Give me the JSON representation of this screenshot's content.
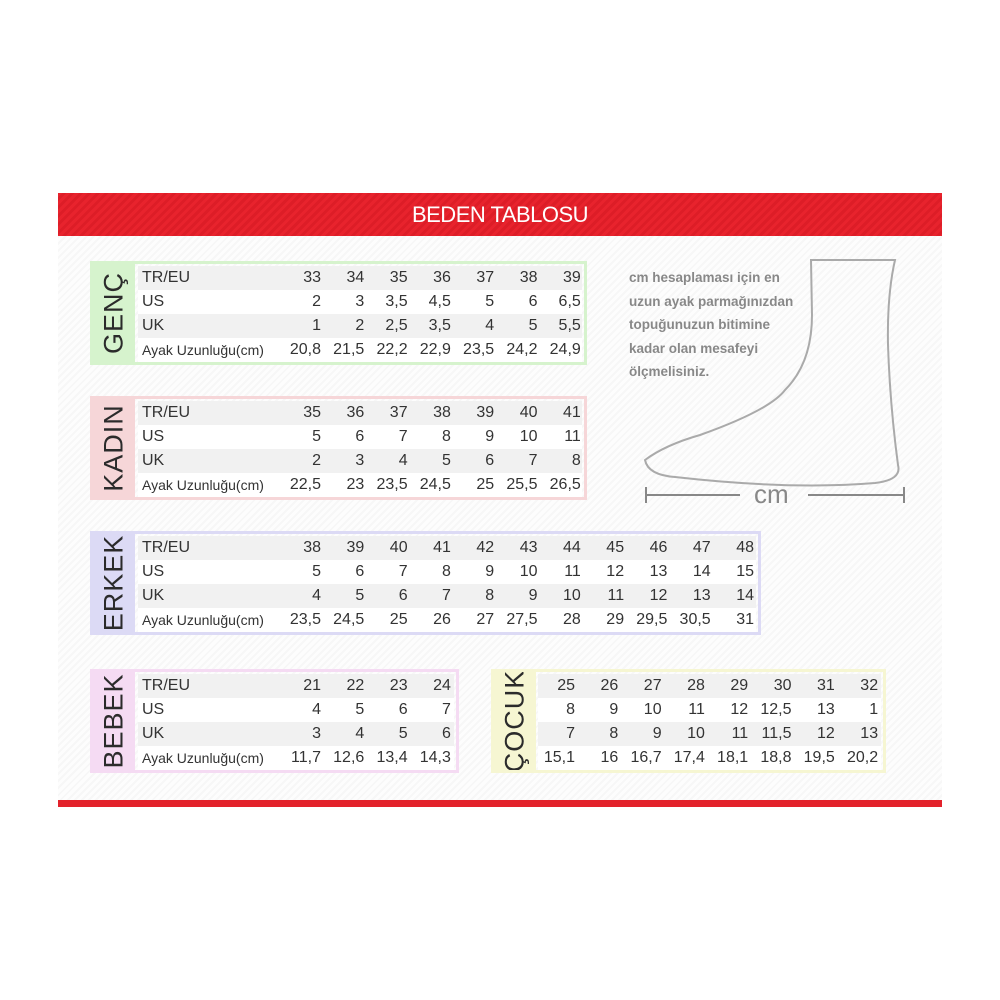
{
  "title": "BEDEN TABLOSU",
  "colors": {
    "header": "#e8232d",
    "genc": "#d6f3cd",
    "kadin": "#f6d6d8",
    "erkek": "#dcdaf5",
    "bebek": "#f5dbf3",
    "cocuk": "#f6f6d2"
  },
  "note": [
    "cm hesaplaması için en",
    "uzun ayak parmağınızdan",
    "topuğunuzun bitimine",
    "kadar olan mesafeyi",
    "ölçmelisiniz."
  ],
  "measure_label": "cm",
  "tables": [
    {
      "name": "GENÇ",
      "rows": [
        {
          "label": "TR/EU",
          "values": [
            "33",
            "34",
            "35",
            "36",
            "37",
            "38",
            "39"
          ]
        },
        {
          "label": "US",
          "values": [
            "2",
            "3",
            "3,5",
            "4,5",
            "5",
            "6",
            "6,5"
          ]
        },
        {
          "label": "UK",
          "values": [
            "1",
            "2",
            "2,5",
            "3,5",
            "4",
            "5",
            "5,5"
          ]
        },
        {
          "label": "Ayak Uzunluğu(cm)",
          "values": [
            "20,8",
            "21,5",
            "22,2",
            "22,9",
            "23,5",
            "24,2",
            "24,9"
          ]
        }
      ]
    },
    {
      "name": "KADIN",
      "rows": [
        {
          "label": "TR/EU",
          "values": [
            "35",
            "36",
            "37",
            "38",
            "39",
            "40",
            "41"
          ]
        },
        {
          "label": "US",
          "values": [
            "5",
            "6",
            "7",
            "8",
            "9",
            "10",
            "11"
          ]
        },
        {
          "label": "UK",
          "values": [
            "2",
            "3",
            "4",
            "5",
            "6",
            "7",
            "8"
          ]
        },
        {
          "label": "Ayak Uzunluğu(cm)",
          "values": [
            "22,5",
            "23",
            "23,5",
            "24,5",
            "25",
            "25,5",
            "26,5"
          ]
        }
      ]
    },
    {
      "name": "ERKEK",
      "rows": [
        {
          "label": "TR/EU",
          "values": [
            "38",
            "39",
            "40",
            "41",
            "42",
            "43",
            "44",
            "45",
            "46",
            "47",
            "48"
          ]
        },
        {
          "label": "US",
          "values": [
            "5",
            "6",
            "7",
            "8",
            "9",
            "10",
            "11",
            "12",
            "13",
            "14",
            "15"
          ]
        },
        {
          "label": "UK",
          "values": [
            "4",
            "5",
            "6",
            "7",
            "8",
            "9",
            "10",
            "11",
            "12",
            "13",
            "14"
          ]
        },
        {
          "label": "Ayak Uzunluğu(cm)",
          "values": [
            "23,5",
            "24,5",
            "25",
            "26",
            "27",
            "27,5",
            "28",
            "29",
            "29,5",
            "30,5",
            "31"
          ]
        }
      ]
    },
    {
      "name": "BEBEK",
      "rows": [
        {
          "label": "TR/EU",
          "values": [
            "21",
            "22",
            "23",
            "24"
          ]
        },
        {
          "label": "US",
          "values": [
            "4",
            "5",
            "6",
            "7"
          ]
        },
        {
          "label": "UK",
          "values": [
            "3",
            "4",
            "5",
            "6"
          ]
        },
        {
          "label": "Ayak Uzunluğu(cm)",
          "values": [
            "11,7",
            "12,6",
            "13,4",
            "14,3"
          ]
        }
      ]
    },
    {
      "name": "ÇOCUK",
      "rows": [
        {
          "label": "",
          "values": [
            "25",
            "26",
            "27",
            "28",
            "29",
            "30",
            "31",
            "32"
          ]
        },
        {
          "label": "",
          "values": [
            "8",
            "9",
            "10",
            "11",
            "12",
            "12,5",
            "13",
            "1"
          ]
        },
        {
          "label": "",
          "values": [
            "7",
            "8",
            "9",
            "10",
            "11",
            "11,5",
            "12",
            "13"
          ]
        },
        {
          "label": "",
          "values": [
            "15,1",
            "16",
            "16,7",
            "17,4",
            "18,1",
            "18,8",
            "19,5",
            "20,2"
          ]
        }
      ]
    }
  ]
}
